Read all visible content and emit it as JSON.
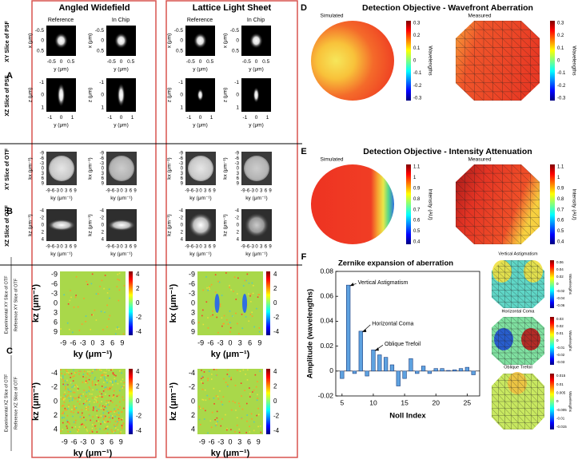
{
  "labels": {
    "A": "A",
    "B": "B",
    "C": "C",
    "D": "D",
    "E": "E",
    "F": "F"
  },
  "left": {
    "columns": [
      "Angled Widefield",
      "Lattice Light Sheet"
    ],
    "subcolumns": [
      "Reference",
      "In Chip"
    ],
    "A": {
      "rows": [
        "XY Slice of PSF",
        "XZ Slice of PSF"
      ],
      "xy": {
        "yticks": [
          "-0.5",
          "0",
          "0.5"
        ],
        "xticks": [
          "-0.5",
          "0",
          "0.5"
        ],
        "ylabel": "x (μm)",
        "xlabel": "y (μm)"
      },
      "xz": {
        "yticks": [
          "-1",
          "0",
          "1"
        ],
        "xticks": [
          "-1",
          "0",
          "1"
        ],
        "ylabel": "z (μm)",
        "xlabel": "y (μm)"
      }
    },
    "B": {
      "rows": [
        "XY Slice of OTF",
        "XZ Slice of OTF"
      ],
      "xy": {
        "yticks": [
          "-9",
          "-6",
          "-3",
          "0",
          "3",
          "6",
          "9"
        ],
        "xticks": [
          "-9",
          "-6",
          "-3",
          "0",
          "3",
          "6",
          "9"
        ],
        "ylabel": "kx (μm⁻¹)",
        "xlabel": "ky (μm⁻¹)"
      },
      "xz": {
        "yticks": [
          "-4",
          "-2",
          "0",
          "2",
          "4"
        ],
        "xticks": [
          "-9",
          "-6",
          "-3",
          "0",
          "3",
          "6",
          "9"
        ],
        "ylabel": "kz (μm⁻¹)",
        "xlabel": "ky (μm⁻¹)"
      }
    },
    "C": {
      "rows": [
        {
          "numerator": "Experimental XY Slice of OTF",
          "denominator": "Reference XY Slice of OTF"
        },
        {
          "numerator": "Experimental XZ Slice of OTF",
          "denominator": "Reference XZ Slice of OTF"
        }
      ],
      "xy": {
        "yticks": [
          "-9",
          "-6",
          "-3",
          "0",
          "3",
          "6",
          "9"
        ],
        "xticks": [
          "-9",
          "-6",
          "-3",
          "0",
          "3",
          "6",
          "9"
        ],
        "ylabels": [
          "kz (μm⁻¹)",
          "kx (μm⁻¹)"
        ],
        "xlabel": "ky (μm⁻¹)"
      },
      "xz": {
        "yticks": [
          "-4",
          "-2",
          "0",
          "2",
          "4"
        ],
        "xticks": [
          "-9",
          "-6",
          "-3",
          "0",
          "3",
          "6",
          "9"
        ],
        "ylabels": [
          "kz (μm⁻¹)",
          "kz (μm⁻¹)"
        ],
        "xlabel": "ky (μm⁻¹)"
      },
      "colorbar_ticks": [
        "4",
        "2",
        "0",
        "-2",
        "-4"
      ]
    }
  },
  "D": {
    "title": "Detection Objective - Wavefront Aberration",
    "maps": [
      "Simulated",
      "Measured"
    ],
    "colorbar_ticks": [
      "0.3",
      "0.2",
      "0.1",
      "0",
      "-0.1",
      "-0.2",
      "-0.3"
    ],
    "colorbar_label": "Wavelengths"
  },
  "E": {
    "title": "Detection Objective - Intensity Attenuation",
    "maps": [
      "Simulated",
      "Measured"
    ],
    "colorbar_ticks": [
      "1.1",
      "1",
      "0.9",
      "0.8",
      "0.7",
      "0.6",
      "0.5",
      "0.4"
    ],
    "colorbar_label": "Intensity (AU)"
  },
  "F_maps": [
    {
      "title": "Vertical Astigmatism",
      "colorbar_ticks": [
        "0.06",
        "0.04",
        "0.02",
        "0",
        "-0.02",
        "-0.04",
        "-0.06"
      ],
      "colorbar_label": "Wavelengths"
    },
    {
      "title": "Horizontal Coma",
      "colorbar_ticks": [
        "0.03",
        "0.02",
        "0.01",
        "0",
        "-0.01",
        "-0.02",
        "-0.03"
      ],
      "colorbar_label": "Wavelengths"
    },
    {
      "title": "Oblique Trefoil",
      "colorbar_ticks": [
        "0.015",
        "0.01",
        "0.005",
        "0",
        "-0.005",
        "-0.01",
        "-0.015"
      ],
      "colorbar_label": "Wavelengths"
    }
  ],
  "chart_data": {
    "type": "bar",
    "title": "Zernike expansion of aberration",
    "xlabel": "Noll Index",
    "ylabel": "Amplitude (wavelengths)",
    "x": [
      5,
      6,
      7,
      8,
      9,
      10,
      11,
      12,
      13,
      14,
      15,
      16,
      17,
      18,
      19,
      20,
      21,
      22,
      23,
      24,
      25,
      26
    ],
    "values": [
      -0.006,
      0.069,
      -0.002,
      0.032,
      -0.004,
      0.017,
      0.013,
      0.011,
      0.005,
      -0.012,
      -0.006,
      0.01,
      -0.002,
      0.004,
      -0.002,
      0.002,
      0.002,
      0.0005,
      0.001,
      0.002,
      0.003,
      -0.003
    ],
    "color": "#5ea2e0",
    "xlim": [
      4,
      27
    ],
    "ylim": [
      -0.02,
      0.08
    ],
    "xticks": [
      5,
      10,
      15,
      20,
      25
    ],
    "yticks": [
      -0.02,
      0,
      0.02,
      0.04,
      0.06,
      0.08
    ],
    "annotations": [
      "Vertical Astigmatism",
      "Horizontal Coma",
      "Oblique Trefoil"
    ]
  }
}
